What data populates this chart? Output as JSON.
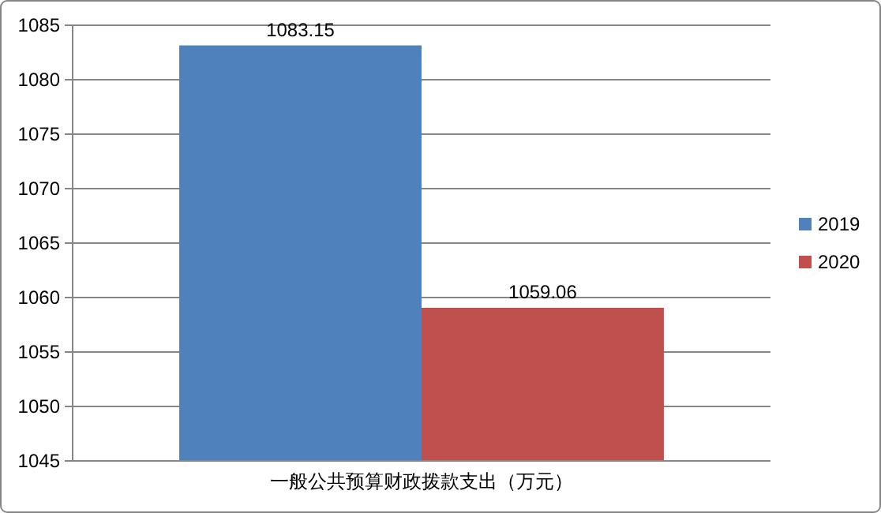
{
  "chart_data": {
    "type": "bar",
    "categories": [
      "一般公共预算财政拨款支出（万元）"
    ],
    "series": [
      {
        "name": "2019",
        "color": "#4f81bd",
        "values": [
          1083.15
        ]
      },
      {
        "name": "2020",
        "color": "#c0504d",
        "values": [
          1059.06
        ]
      }
    ],
    "ylim": [
      1045,
      1085
    ],
    "yticks": [
      1045,
      1050,
      1055,
      1060,
      1065,
      1070,
      1075,
      1080,
      1085
    ],
    "grid": "y",
    "legend": "right",
    "data_labels": true
  }
}
